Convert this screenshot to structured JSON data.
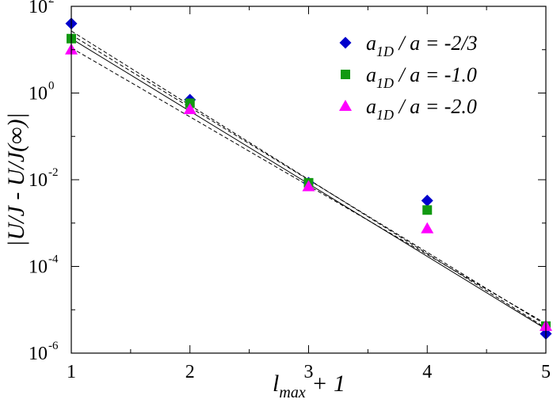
{
  "chart_data": {
    "type": "scatter",
    "y_scale": "log",
    "xlim": [
      1,
      5
    ],
    "ylim": [
      1e-06,
      100
    ],
    "x_ticks": [
      1,
      2,
      3,
      4,
      5
    ],
    "x_tick_labels": [
      "1",
      "2",
      "3",
      "4",
      "5"
    ],
    "y_ticks": [
      1e-06,
      0.0001,
      0.01,
      1,
      100
    ],
    "y_tick_labels": [
      {
        "base": "10",
        "exp": "-6"
      },
      {
        "base": "10",
        "exp": "-4"
      },
      {
        "base": "10",
        "exp": "-2"
      },
      {
        "base": "10",
        "exp": "0"
      },
      {
        "base": "10",
        "exp": "2"
      }
    ],
    "xlabel": {
      "main": "l",
      "sub": "max",
      "rest": " + 1"
    },
    "ylabel": "|U/J - U/J(∞)|",
    "grid": false,
    "legend_position": "top-right",
    "series": [
      {
        "name": "a_1D / a = -2/3",
        "legend": {
          "main": "a",
          "sub": "1D",
          "rest": " / a = -2/3"
        },
        "marker": "diamond",
        "color": "#0000cc",
        "x": [
          1,
          2,
          3,
          4,
          5
        ],
        "y": [
          40,
          0.7,
          0.0085,
          0.0033,
          2.8e-06
        ]
      },
      {
        "name": "a_1D / a = -1.0",
        "legend": {
          "main": "a",
          "sub": "1D",
          "rest": " / a = -1.0"
        },
        "marker": "square",
        "color": "#119911",
        "x": [
          1,
          2,
          3,
          4,
          5
        ],
        "y": [
          18,
          0.58,
          0.0085,
          0.002,
          4.2e-06
        ]
      },
      {
        "name": "a_1D / a = -2.0",
        "legend": {
          "main": "a",
          "sub": "1D",
          "rest": " / a = -2.0"
        },
        "marker": "triangle",
        "color": "#ff00ff",
        "x": [
          1,
          2,
          3,
          4,
          5
        ],
        "y": [
          10,
          0.42,
          0.007,
          0.00075,
          4.2e-06
        ]
      }
    ],
    "fit_lines": [
      {
        "style": "solid",
        "x": [
          1,
          5
        ],
        "y": [
          18,
          3.6e-06
        ]
      },
      {
        "style": "dashed",
        "x": [
          1,
          5
        ],
        "y": [
          27,
          3.8e-06
        ]
      },
      {
        "style": "dashed",
        "x": [
          1,
          5
        ],
        "y": [
          22,
          4.5e-06
        ]
      },
      {
        "style": "dashed",
        "x": [
          1,
          5
        ],
        "y": [
          11,
          4.8e-06
        ]
      }
    ]
  }
}
